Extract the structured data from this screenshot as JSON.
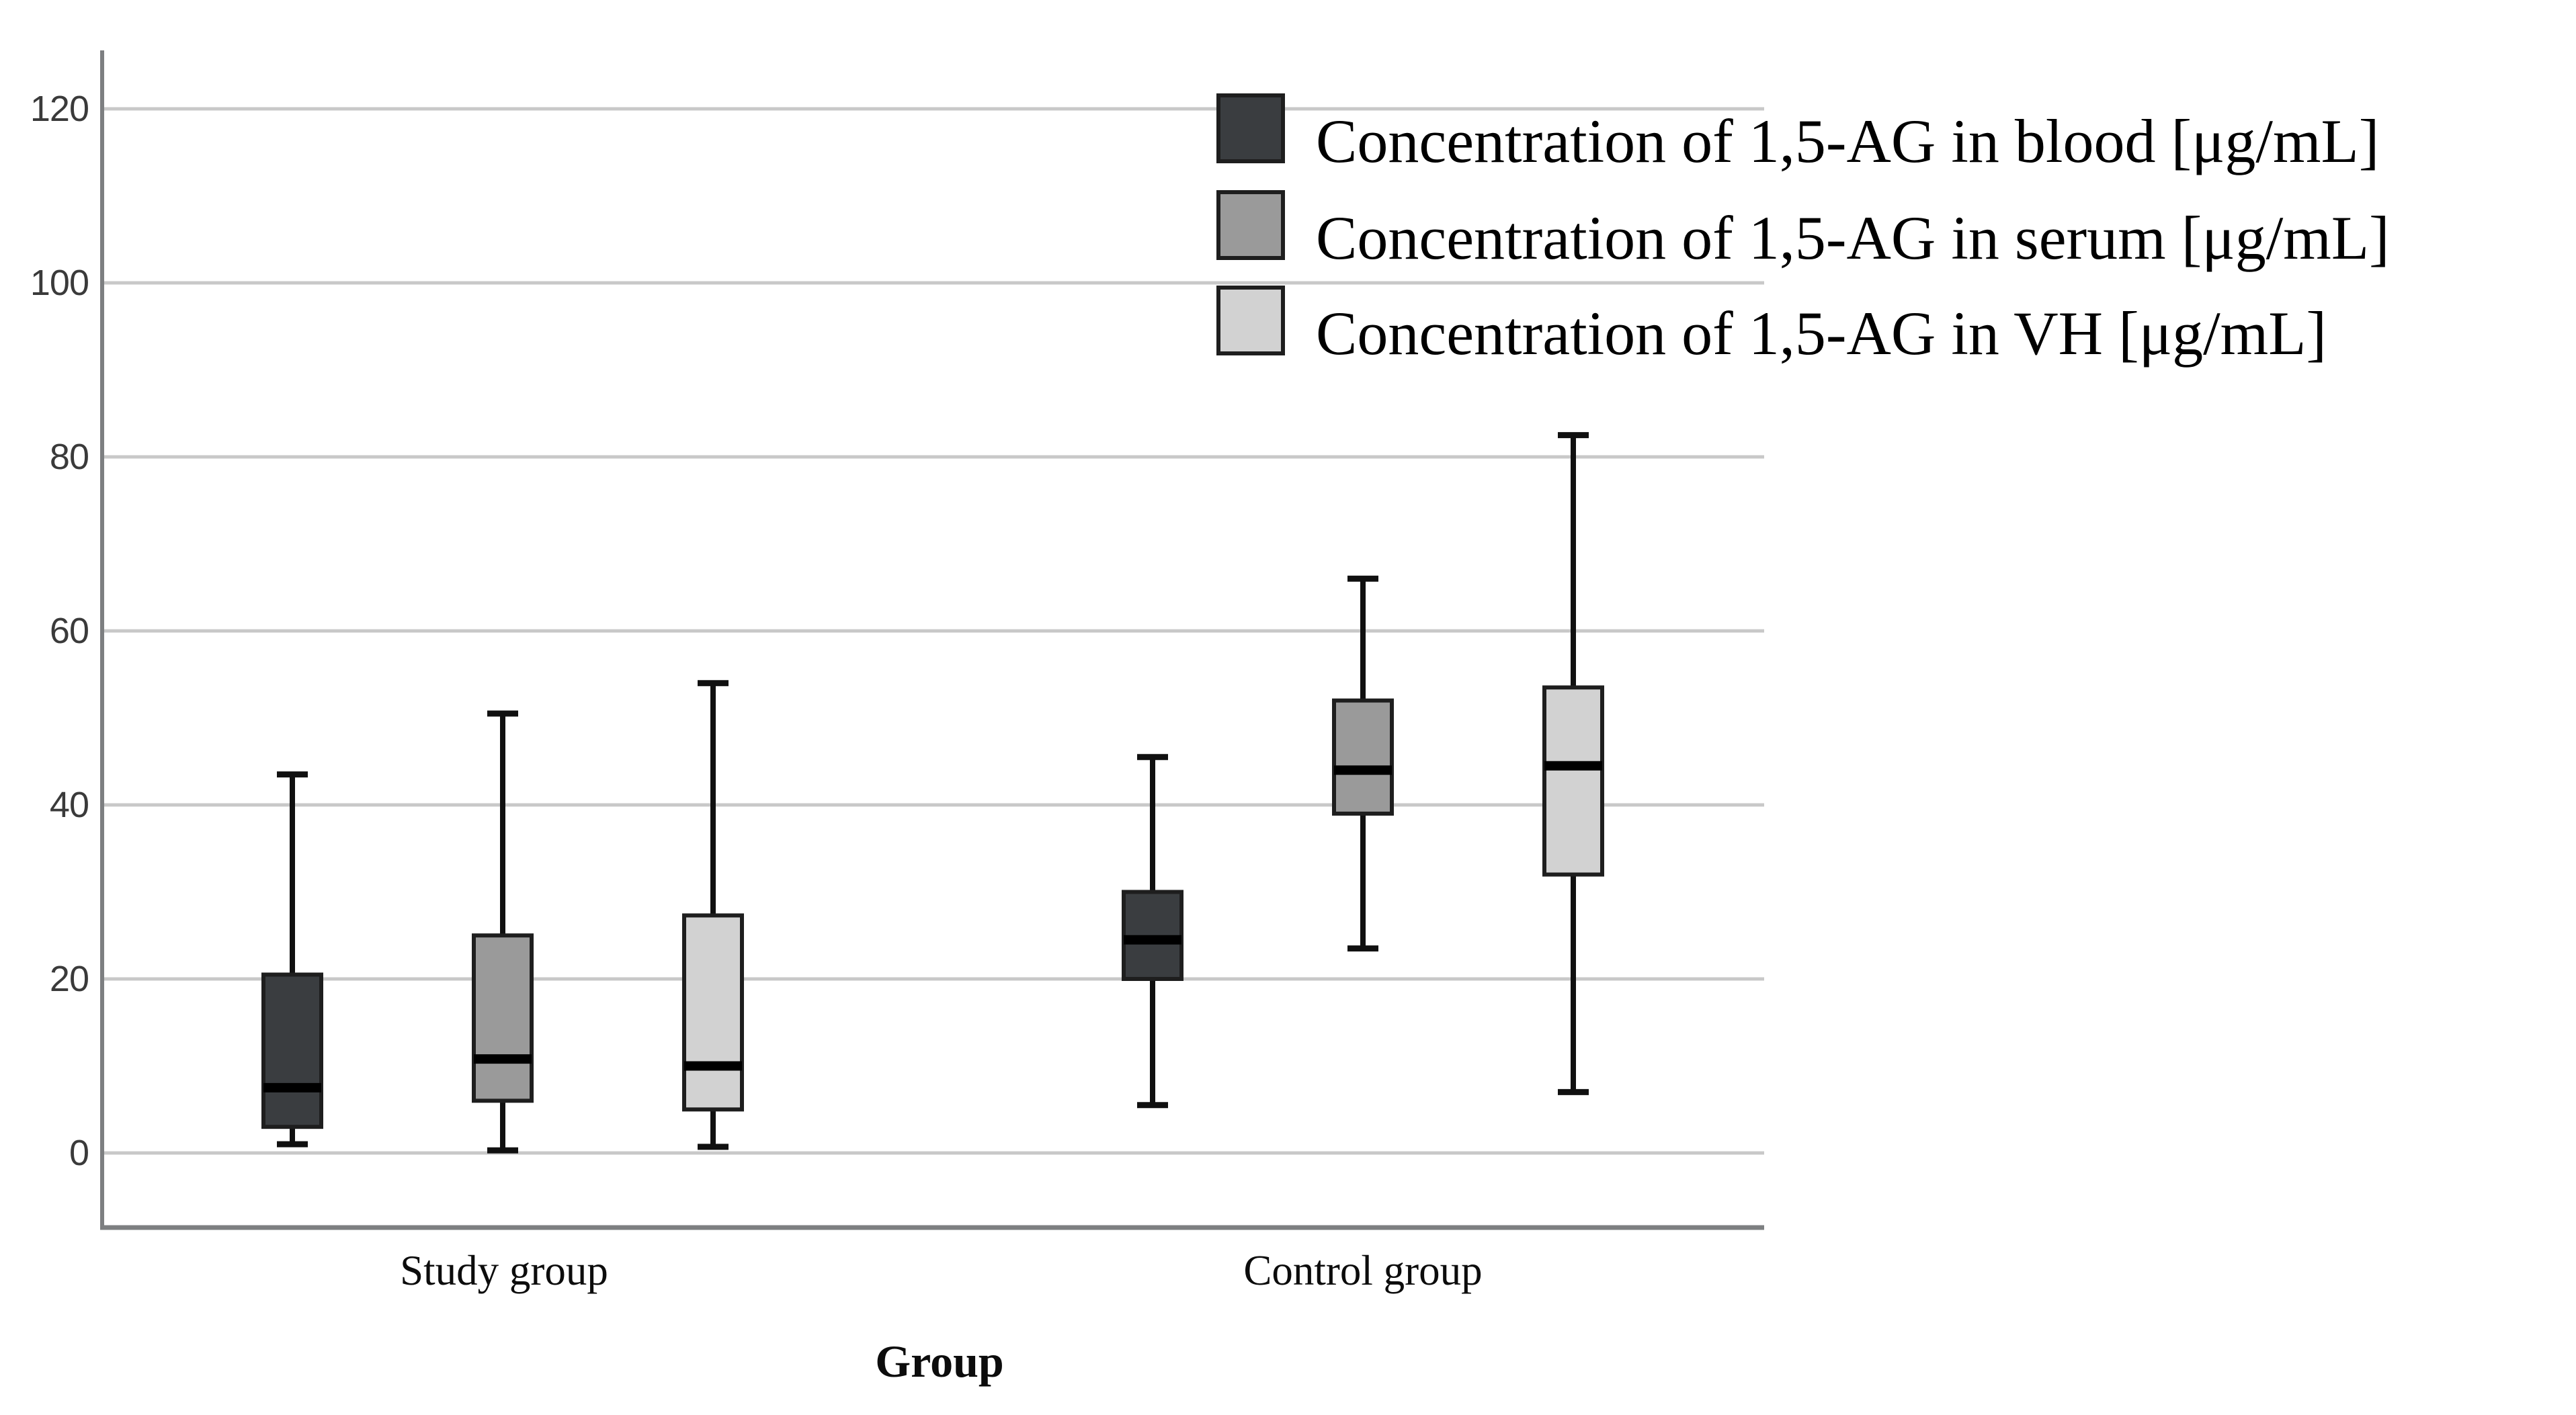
{
  "figure": {
    "background": "#ffffff",
    "grid_color": "#c8c8c8",
    "axis_color": "#7d7f81",
    "box_stroke": "#1e1e1e",
    "median_color": "#000000",
    "whisker_color": "#101010"
  },
  "chart_data": {
    "type": "boxplot",
    "title": "",
    "xlabel": "Group",
    "ylabel": "",
    "yticks": [
      0,
      20,
      40,
      60,
      80,
      100,
      120
    ],
    "ylim": [
      -9,
      127
    ],
    "grid": true,
    "legend_position": "top-right",
    "categories": [
      "Study group",
      "Control group"
    ],
    "series": [
      {
        "name": "Concentration of 1,5-AG in blood [μg/mL]",
        "color": "#3a3d40",
        "boxes": [
          {
            "category": "Study group",
            "min": 1.0,
            "q1": 3.0,
            "median": 7.5,
            "q3": 20.5,
            "max": 43.5
          },
          {
            "category": "Control group",
            "min": 5.5,
            "q1": 20.0,
            "median": 24.5,
            "q3": 30.0,
            "max": 45.5
          }
        ]
      },
      {
        "name": "Concentration of 1,5-AG in serum [μg/mL]",
        "color": "#9a9a9a",
        "boxes": [
          {
            "category": "Study group",
            "min": 0.3,
            "q1": 6.0,
            "median": 10.8,
            "q3": 25.0,
            "max": 50.5
          },
          {
            "category": "Control group",
            "min": 23.5,
            "q1": 39.0,
            "median": 44.0,
            "q3": 52.0,
            "max": 66.0
          }
        ]
      },
      {
        "name": "Concentration of 1,5-AG in VH [μg/mL]",
        "color": "#d2d2d2",
        "boxes": [
          {
            "category": "Study group",
            "min": 0.7,
            "q1": 5.0,
            "median": 10.0,
            "q3": 27.3,
            "max": 54.0
          },
          {
            "category": "Control group",
            "min": 7.0,
            "q1": 32.0,
            "median": 44.5,
            "q3": 53.5,
            "max": 82.5
          }
        ]
      }
    ]
  }
}
